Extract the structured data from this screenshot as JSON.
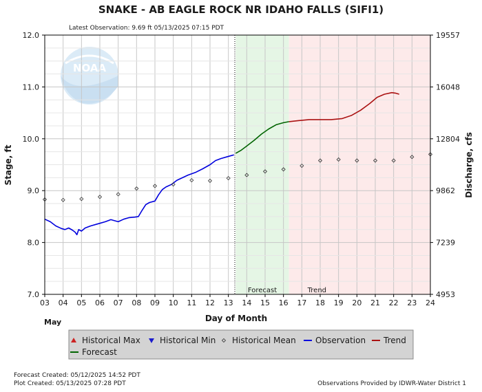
{
  "chart_data": {
    "type": "line",
    "title": "SNAKE - AB EAGLE ROCK NR IDAHO FALLS  (SIFI1)",
    "subtitle": "Latest Observation: 9.69 ft 05/13/2025 07:15 PDT",
    "xlabel": "Day of Month",
    "month_label": "May",
    "ylabel_left": "Stage, ft",
    "ylabel_right": "Discharge, cfs",
    "x_ticks": [
      "03",
      "04",
      "05",
      "06",
      "07",
      "08",
      "09",
      "10",
      "11",
      "12",
      "13",
      "14",
      "15",
      "16",
      "17",
      "18",
      "19",
      "20",
      "21",
      "22",
      "23",
      "24"
    ],
    "xlim": [
      3,
      24
    ],
    "ylim": [
      7.0,
      12.0
    ],
    "y_ticks_left": [
      "7.0",
      "8.0",
      "9.0",
      "10.0",
      "11.0",
      "12.0"
    ],
    "y_ticks_right": [
      "4953",
      "7239",
      "9862",
      "12804",
      "16048",
      "19557"
    ],
    "grid": true,
    "regions": [
      {
        "name": "Forecast",
        "from": 13.4,
        "to": 16.3,
        "color": "#e5f6e5"
      },
      {
        "name": "Trend",
        "from": 16.3,
        "to": 24.0,
        "color": "#fdeaea"
      }
    ],
    "latest_observation_marker": 13.35,
    "series": [
      {
        "name": "Observation",
        "color": "#0000dd",
        "points": [
          [
            3.0,
            8.45
          ],
          [
            3.3,
            8.4
          ],
          [
            3.6,
            8.32
          ],
          [
            3.9,
            8.27
          ],
          [
            4.1,
            8.25
          ],
          [
            4.3,
            8.28
          ],
          [
            4.5,
            8.24
          ],
          [
            4.65,
            8.2
          ],
          [
            4.75,
            8.15
          ],
          [
            4.85,
            8.25
          ],
          [
            5.0,
            8.22
          ],
          [
            5.2,
            8.28
          ],
          [
            5.5,
            8.32
          ],
          [
            5.8,
            8.35
          ],
          [
            6.0,
            8.37
          ],
          [
            6.3,
            8.4
          ],
          [
            6.6,
            8.44
          ],
          [
            6.8,
            8.42
          ],
          [
            7.0,
            8.4
          ],
          [
            7.3,
            8.45
          ],
          [
            7.6,
            8.48
          ],
          [
            7.9,
            8.49
          ],
          [
            8.1,
            8.5
          ],
          [
            8.3,
            8.62
          ],
          [
            8.5,
            8.73
          ],
          [
            8.7,
            8.77
          ],
          [
            9.0,
            8.8
          ],
          [
            9.2,
            8.92
          ],
          [
            9.4,
            9.02
          ],
          [
            9.6,
            9.07
          ],
          [
            9.9,
            9.12
          ],
          [
            10.2,
            9.2
          ],
          [
            10.5,
            9.25
          ],
          [
            10.8,
            9.3
          ],
          [
            11.2,
            9.35
          ],
          [
            11.6,
            9.42
          ],
          [
            12.0,
            9.5
          ],
          [
            12.3,
            9.58
          ],
          [
            12.6,
            9.62
          ],
          [
            12.9,
            9.65
          ],
          [
            13.1,
            9.67
          ],
          [
            13.3,
            9.69
          ]
        ]
      },
      {
        "name": "Forecast",
        "color": "#006400",
        "points": [
          [
            13.4,
            9.72
          ],
          [
            13.7,
            9.78
          ],
          [
            14.0,
            9.86
          ],
          [
            14.4,
            9.97
          ],
          [
            14.8,
            10.09
          ],
          [
            15.2,
            10.19
          ],
          [
            15.6,
            10.27
          ],
          [
            16.0,
            10.31
          ],
          [
            16.3,
            10.33
          ]
        ]
      },
      {
        "name": "Trend",
        "color": "#aa1111",
        "points": [
          [
            16.3,
            10.33
          ],
          [
            16.8,
            10.35
          ],
          [
            17.4,
            10.37
          ],
          [
            18.0,
            10.37
          ],
          [
            18.6,
            10.37
          ],
          [
            19.2,
            10.39
          ],
          [
            19.7,
            10.45
          ],
          [
            20.2,
            10.55
          ],
          [
            20.7,
            10.68
          ],
          [
            21.1,
            10.8
          ],
          [
            21.5,
            10.86
          ],
          [
            21.9,
            10.89
          ],
          [
            22.1,
            10.88
          ],
          [
            22.3,
            10.86
          ]
        ]
      },
      {
        "name": "Historical Mean",
        "color": "#333333",
        "points": [
          [
            3,
            8.83
          ],
          [
            4,
            8.82
          ],
          [
            5,
            8.84
          ],
          [
            6,
            8.88
          ],
          [
            7,
            8.93
          ],
          [
            8,
            9.04
          ],
          [
            9,
            9.09
          ],
          [
            10,
            9.12
          ],
          [
            11,
            9.2
          ],
          [
            12,
            9.19
          ],
          [
            13,
            9.24
          ],
          [
            14,
            9.3
          ],
          [
            15,
            9.37
          ],
          [
            16,
            9.41
          ],
          [
            17,
            9.48
          ],
          [
            18,
            9.58
          ],
          [
            19,
            9.6
          ],
          [
            20,
            9.58
          ],
          [
            21,
            9.58
          ],
          [
            22,
            9.58
          ],
          [
            23,
            9.65
          ],
          [
            24,
            9.7
          ]
        ]
      }
    ],
    "legend_position": "bottom",
    "legend": [
      {
        "name": "Historical Max",
        "symbol": "triangle-up-icon",
        "color": "#cc2222"
      },
      {
        "name": "Historical Min",
        "symbol": "triangle-down-icon",
        "color": "#1a1acc"
      },
      {
        "name": "Historical Mean",
        "symbol": "diamond-icon",
        "color": "#333333"
      },
      {
        "name": "Observation",
        "symbol": "line-icon",
        "color": "#0000dd"
      },
      {
        "name": "Trend",
        "symbol": "line-icon",
        "color": "#aa1111"
      },
      {
        "name": "Forecast",
        "symbol": "line-icon",
        "color": "#006400"
      }
    ]
  },
  "footer": {
    "forecast_created": "Forecast Created: 05/12/2025 14:52 PDT",
    "plot_created": "Plot Created: 05/13/2025 07:28 PDT",
    "provider": "Observations Provided by IDWR-Water District 1"
  },
  "watermark": {
    "text": "NOAA",
    "color": "#6aaee0"
  }
}
